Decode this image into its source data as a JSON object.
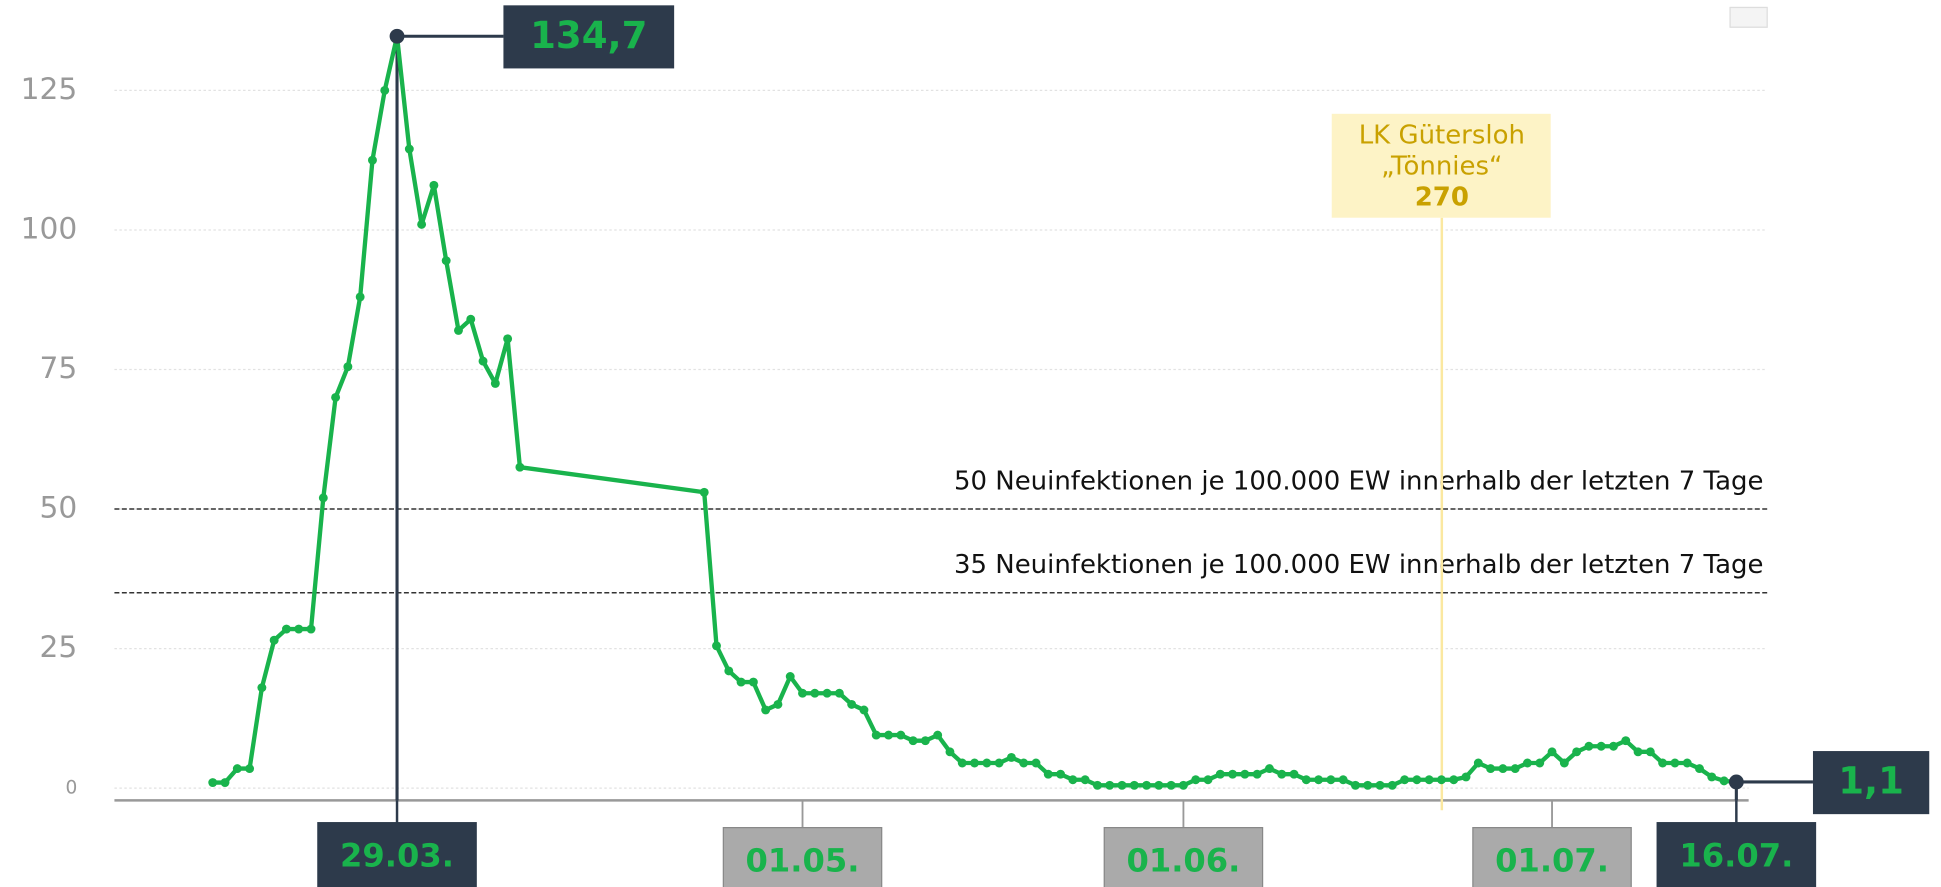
{
  "chart_data": {
    "type": "line",
    "x": [
      "14.03.",
      "15.03.",
      "16.03.",
      "17.03.",
      "18.03.",
      "19.03.",
      "20.03.",
      "21.03.",
      "22.03.",
      "23.03.",
      "24.03.",
      "25.03.",
      "26.03.",
      "27.03.",
      "28.03.",
      "29.03.",
      "30.03.",
      "31.03.",
      "01.04.",
      "02.04.",
      "03.04.",
      "04.04.",
      "05.04.",
      "06.04.",
      "07.04.",
      "08.04.",
      "23.04.",
      "24.04.",
      "25.04.",
      "26.04.",
      "27.04.",
      "28.04.",
      "29.04.",
      "30.04.",
      "01.05.",
      "02.05.",
      "03.05.",
      "04.05.",
      "05.05.",
      "06.05.",
      "07.05.",
      "08.05.",
      "09.05.",
      "10.05.",
      "11.05.",
      "12.05.",
      "13.05.",
      "14.05.",
      "15.05.",
      "16.05.",
      "17.05.",
      "18.05.",
      "19.05.",
      "20.05.",
      "21.05.",
      "22.05.",
      "23.05.",
      "24.05.",
      "25.05.",
      "26.05.",
      "27.05.",
      "28.05.",
      "29.05.",
      "30.05.",
      "31.05.",
      "01.06.",
      "02.06.",
      "03.06.",
      "04.06.",
      "05.06.",
      "06.06.",
      "07.06.",
      "08.06.",
      "09.06.",
      "10.06.",
      "11.06.",
      "12.06.",
      "13.06.",
      "14.06.",
      "15.06.",
      "16.06.",
      "17.06.",
      "18.06.",
      "19.06.",
      "20.06.",
      "21.06.",
      "22.06.",
      "23.06.",
      "24.06.",
      "25.06.",
      "26.06.",
      "27.06.",
      "28.06.",
      "29.06.",
      "30.06.",
      "01.07.",
      "02.07.",
      "03.07.",
      "04.07.",
      "05.07.",
      "06.07.",
      "07.07.",
      "08.07.",
      "09.07.",
      "10.07.",
      "11.07.",
      "12.07.",
      "13.07.",
      "14.07.",
      "15.07.",
      "16.07."
    ],
    "series": [
      {
        "name": null,
        "color": "#19b34c",
        "values": [
          1,
          1,
          3.5,
          3.5,
          18,
          26.5,
          28.5,
          28.5,
          28.5,
          52,
          70,
          75.5,
          88,
          112.5,
          125,
          134.7,
          114.5,
          101,
          108,
          94.5,
          82,
          84,
          76.5,
          72.5,
          80.5,
          57.5,
          53,
          25.5,
          21,
          19,
          19,
          14,
          15,
          20,
          17,
          17,
          17,
          17,
          15,
          14,
          9.5,
          9.5,
          9.5,
          8.5,
          8.5,
          9.5,
          6.5,
          4.5,
          4.5,
          4.5,
          4.5,
          5.5,
          4.5,
          4.5,
          2.5,
          2.5,
          1.5,
          1.5,
          0.5,
          0.5,
          0.5,
          0.5,
          0.5,
          0.5,
          0.5,
          0.5,
          1.5,
          1.5,
          2.5,
          2.5,
          2.5,
          2.5,
          3.5,
          2.5,
          2.5,
          1.5,
          1.5,
          1.5,
          1.5,
          0.5,
          0.5,
          0.5,
          0.5,
          1.5,
          1.5,
          1.5,
          1.5,
          1.5,
          2,
          4.5,
          3.5,
          3.5,
          3.5,
          4.5,
          4.5,
          6.5,
          4.5,
          6.5,
          7.5,
          7.5,
          7.5,
          8.5,
          6.5,
          6.5,
          4.5,
          4.5,
          4.5,
          3.5,
          2,
          1.3,
          1.1
        ],
        "value_labels": [
          null,
          null,
          null,
          null,
          null,
          null,
          null,
          null,
          null,
          null,
          null,
          null,
          null,
          null,
          null,
          "134,7",
          null,
          null,
          null,
          null,
          null,
          null,
          null,
          null,
          null,
          null,
          null,
          null,
          null,
          null,
          null,
          null,
          null,
          null,
          null,
          null,
          null,
          null,
          null,
          null,
          null,
          null,
          null,
          null,
          null,
          null,
          null,
          null,
          null,
          null,
          null,
          null,
          null,
          null,
          null,
          null,
          null,
          null,
          null,
          null,
          null,
          null,
          null,
          null,
          null,
          null,
          null,
          null,
          null,
          null,
          null,
          null,
          null,
          null,
          null,
          null,
          null,
          null,
          null,
          null,
          null,
          null,
          null,
          null,
          null,
          null,
          null,
          null,
          null,
          null,
          null,
          null,
          null,
          null,
          null,
          null,
          null,
          null,
          null,
          null,
          null,
          null,
          null,
          null,
          null,
          null,
          null,
          null,
          null,
          null,
          "1,1"
        ]
      }
    ],
    "xlim": [
      "06.03.",
      "17.07."
    ],
    "xticks": [
      "29.03.",
      "01.05.",
      "01.06.",
      "01.07.",
      "16.07."
    ],
    "ylim": [
      -2.2,
      140
    ],
    "yticks": [
      0,
      25,
      50,
      75,
      100,
      125
    ],
    "grid": true,
    "reference_lines": [
      {
        "value": 50,
        "label": "50 Neuinfektionen je 100.000 EW innerhalb der letzten 7 Tage"
      },
      {
        "value": 35,
        "label": "35 Neuinfektionen je 100.000 EW innerhalb der letzten 7 Tage"
      }
    ],
    "annotation": {
      "lines": [
        "LK Gütersloh",
        "„Tönnies“",
        "270"
      ]
    }
  }
}
